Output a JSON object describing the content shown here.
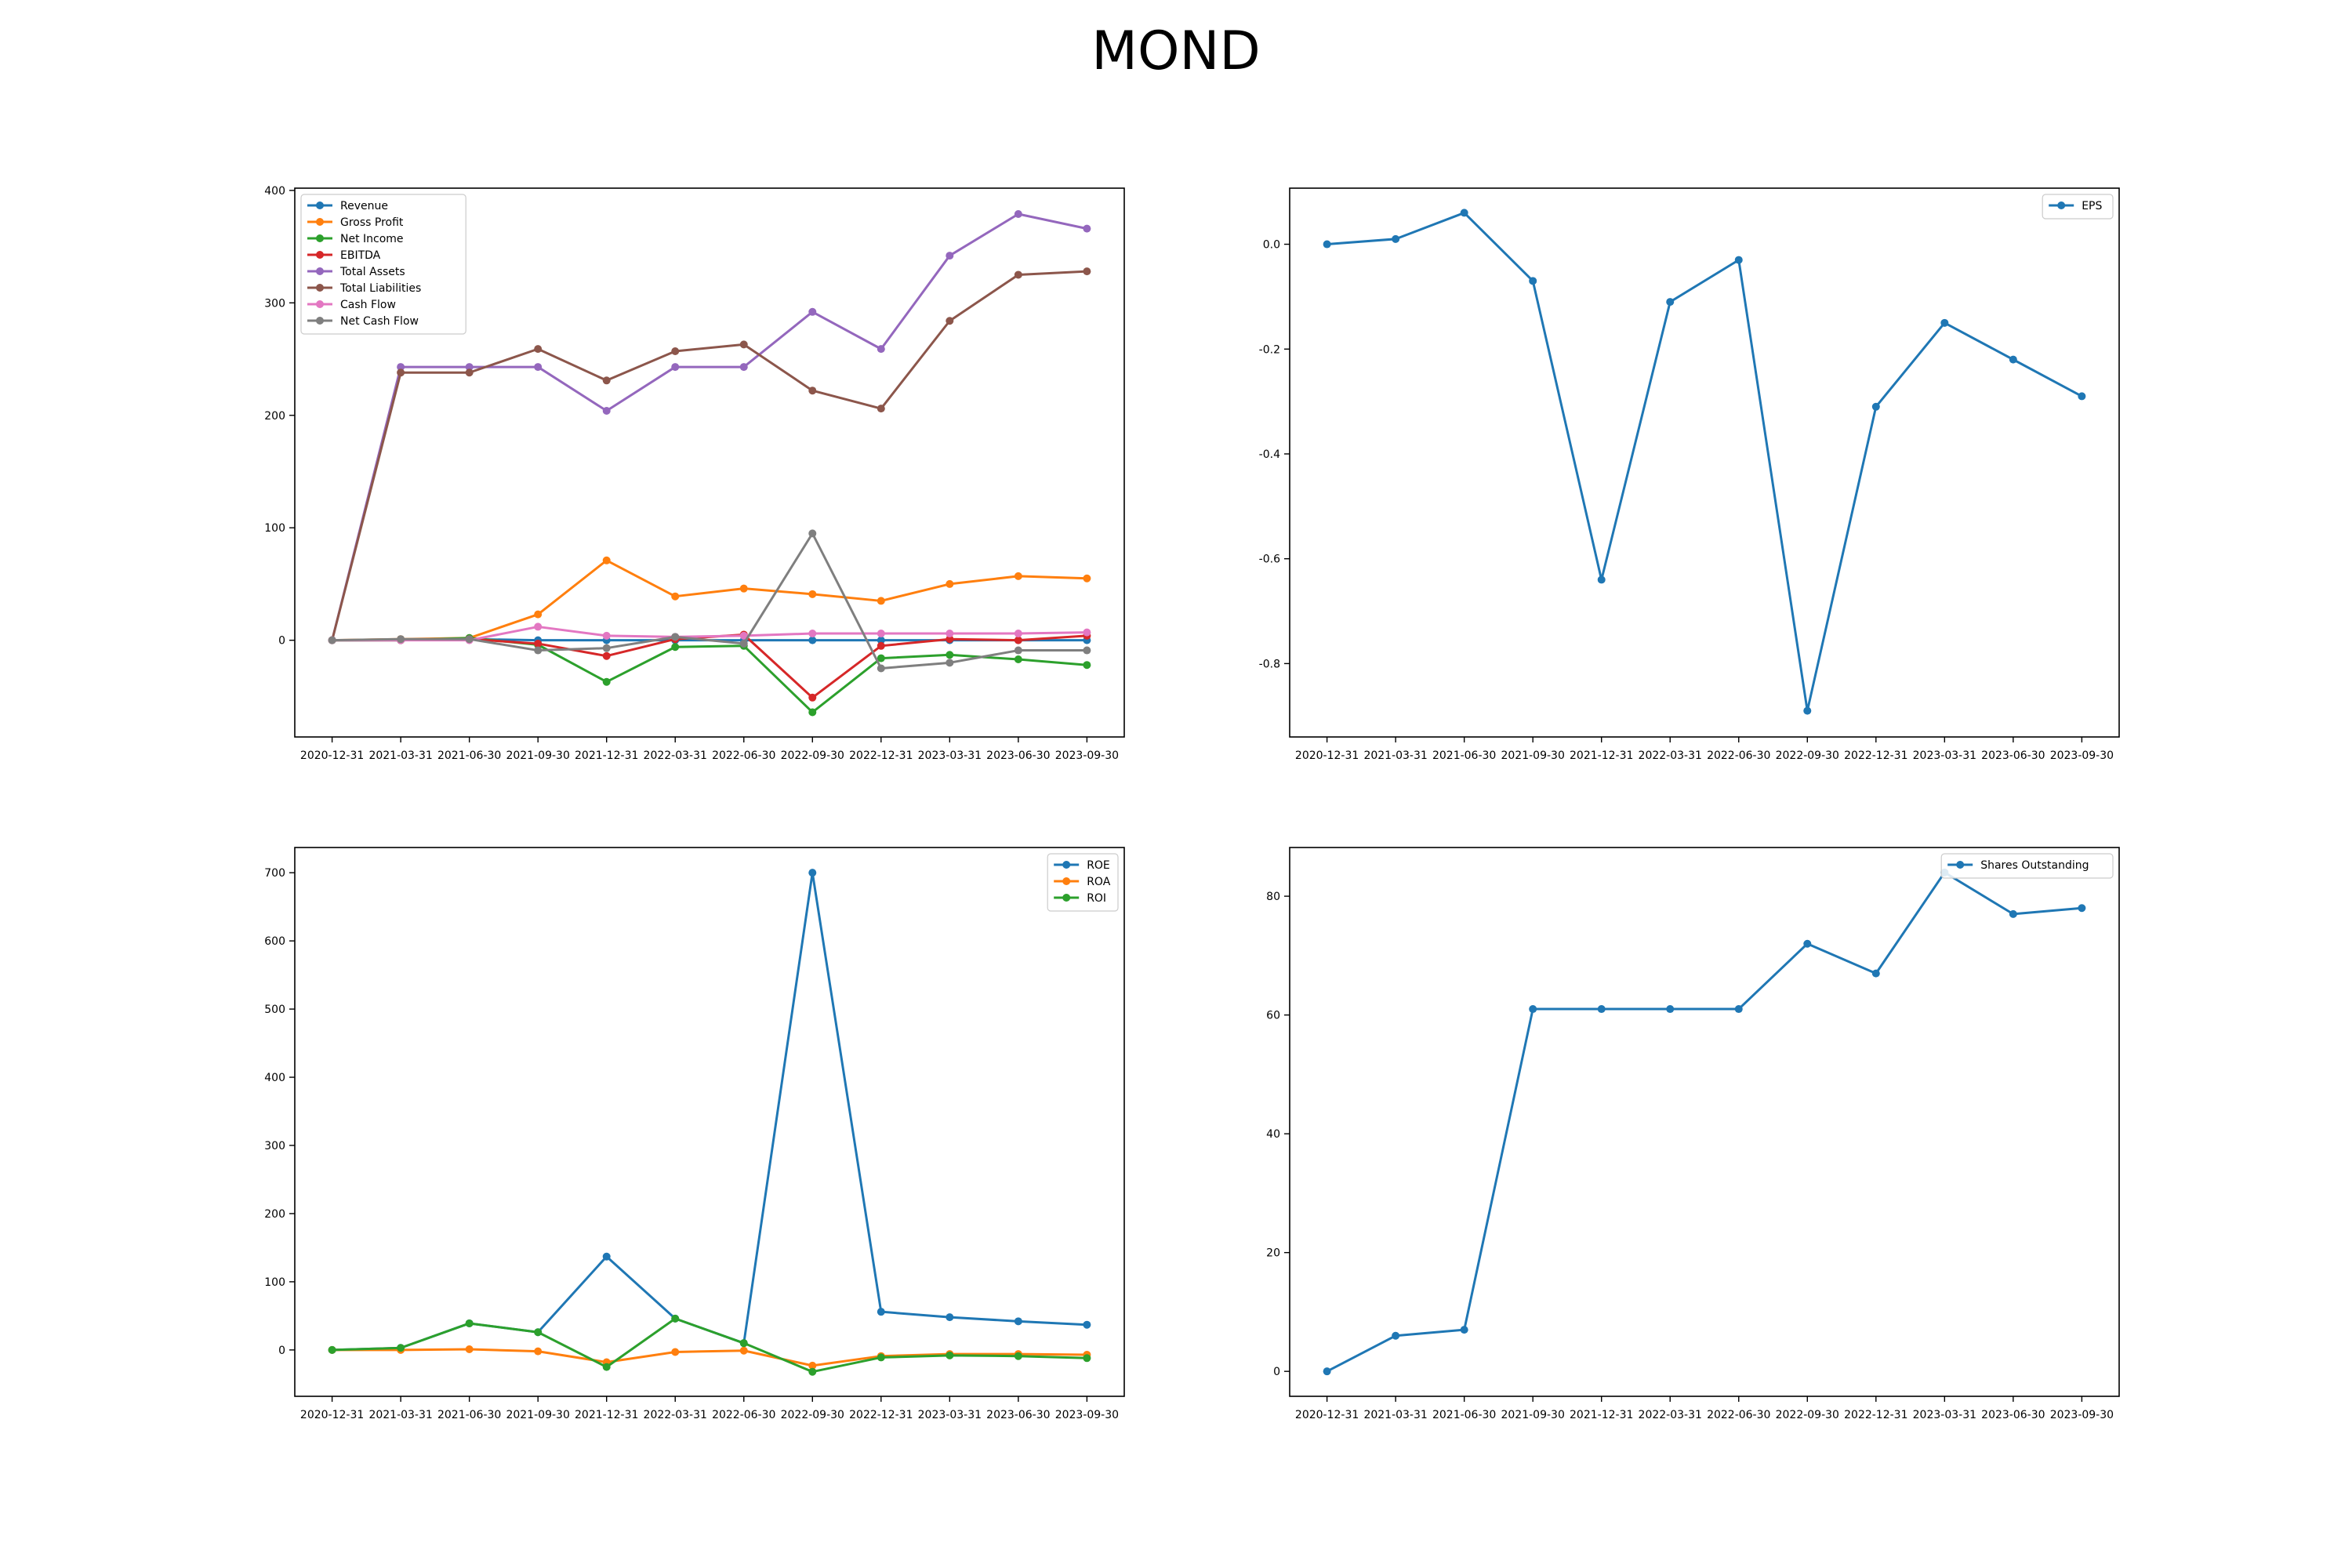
{
  "title": "MOND",
  "chart_data": [
    {
      "type": "line",
      "categories": [
        "2020-12-31",
        "2021-03-31",
        "2021-06-30",
        "2021-09-30",
        "2021-12-31",
        "2022-03-31",
        "2022-06-30",
        "2022-09-30",
        "2022-12-31",
        "2023-03-31",
        "2023-06-30",
        "2023-09-30"
      ],
      "ylim": [
        -86,
        402
      ],
      "yticks": [
        0,
        100,
        200,
        300,
        400
      ],
      "legend": "upper-left",
      "series": [
        {
          "name": "Revenue",
          "color": "#1f77b4",
          "values": [
            0,
            0,
            1,
            0,
            0,
            0,
            0,
            0,
            0,
            0,
            0,
            0
          ]
        },
        {
          "name": "Gross Profit",
          "color": "#ff7f0e",
          "values": [
            0,
            1,
            2,
            23,
            71,
            39,
            46,
            41,
            35,
            50,
            57,
            55
          ]
        },
        {
          "name": "Net Income",
          "color": "#2ca02c",
          "values": [
            0,
            0,
            2,
            -4,
            -37,
            -6,
            -5,
            -64,
            -16,
            -13,
            -17,
            -22
          ]
        },
        {
          "name": "EBITDA",
          "color": "#d62728",
          "values": [
            0,
            0,
            1,
            -3,
            -14,
            1,
            5,
            -51,
            -5,
            1,
            0,
            4
          ]
        },
        {
          "name": "Total Assets",
          "color": "#9467bd",
          "values": [
            0,
            243,
            243,
            243,
            204,
            243,
            243,
            292,
            259,
            342,
            379,
            366
          ]
        },
        {
          "name": "Total Liabilities",
          "color": "#8c564b",
          "values": [
            0,
            238,
            238,
            259,
            231,
            257,
            263,
            222,
            206,
            284,
            325,
            328
          ]
        },
        {
          "name": "Cash Flow",
          "color": "#e377c2",
          "values": [
            0,
            0,
            0,
            12,
            4,
            3,
            4,
            6,
            6,
            6,
            6,
            7
          ]
        },
        {
          "name": "Net Cash Flow",
          "color": "#7f7f7f",
          "values": [
            0,
            1,
            1,
            -9,
            -7,
            3,
            -3,
            95,
            -25,
            -20,
            -9,
            -9
          ]
        }
      ]
    },
    {
      "type": "line",
      "categories": [
        "2020-12-31",
        "2021-03-31",
        "2021-06-30",
        "2021-09-30",
        "2021-12-31",
        "2022-03-31",
        "2022-06-30",
        "2022-09-30",
        "2022-12-31",
        "2023-03-31",
        "2023-06-30",
        "2023-09-30"
      ],
      "ylim": [
        -0.94,
        0.107
      ],
      "yticks": [
        -0.8,
        -0.6,
        -0.4,
        -0.2,
        0.0
      ],
      "legend": "upper-right",
      "series": [
        {
          "name": "EPS",
          "color": "#1f77b4",
          "values": [
            0.0,
            0.01,
            0.06,
            -0.07,
            -0.64,
            -0.11,
            -0.03,
            -0.89,
            -0.31,
            -0.15,
            -0.22,
            -0.29
          ]
        }
      ]
    },
    {
      "type": "line",
      "categories": [
        "2020-12-31",
        "2021-03-31",
        "2021-06-30",
        "2021-09-30",
        "2021-12-31",
        "2022-03-31",
        "2022-06-30",
        "2022-09-30",
        "2022-12-31",
        "2023-03-31",
        "2023-06-30",
        "2023-09-30"
      ],
      "ylim": [
        -68,
        737
      ],
      "yticks": [
        0,
        100,
        200,
        300,
        400,
        500,
        600,
        700
      ],
      "legend": "upper-right",
      "series": [
        {
          "name": "ROE",
          "color": "#1f77b4",
          "values": [
            0,
            3,
            39,
            26,
            137,
            46,
            10,
            700,
            56,
            48,
            42,
            37
          ]
        },
        {
          "name": "ROA",
          "color": "#ff7f0e",
          "values": [
            0,
            0,
            1,
            -2,
            -18,
            -3,
            -1,
            -23,
            -9,
            -6,
            -6,
            -7
          ]
        },
        {
          "name": "ROI",
          "color": "#2ca02c",
          "values": [
            0,
            3,
            39,
            26,
            -25,
            46,
            10,
            -32,
            -11,
            -8,
            -9,
            -12
          ]
        }
      ]
    },
    {
      "type": "line",
      "categories": [
        "2020-12-31",
        "2021-03-31",
        "2021-06-30",
        "2021-09-30",
        "2021-12-31",
        "2022-03-31",
        "2022-06-30",
        "2022-09-30",
        "2022-12-31",
        "2023-03-31",
        "2023-06-30",
        "2023-09-30"
      ],
      "ylim": [
        -4.2,
        88.2
      ],
      "yticks": [
        0,
        20,
        40,
        60,
        80
      ],
      "legend": "upper-right",
      "series": [
        {
          "name": "Shares Outstanding",
          "color": "#1f77b4",
          "values": [
            0,
            6,
            7,
            61,
            61,
            61,
            61,
            72,
            67,
            84,
            77,
            78
          ]
        }
      ]
    }
  ]
}
